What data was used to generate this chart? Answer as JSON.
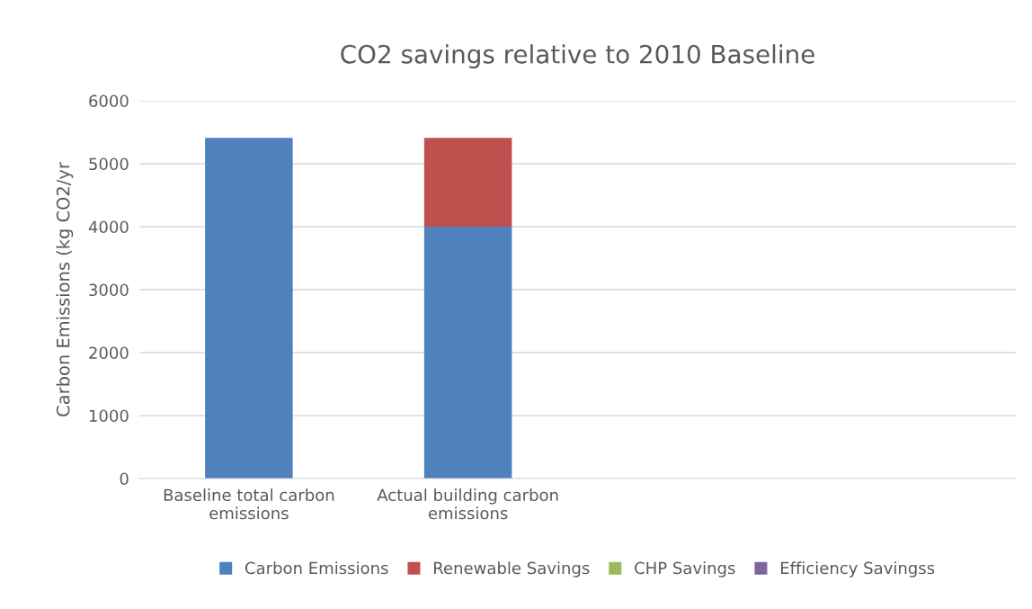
{
  "chart_data": {
    "type": "bar",
    "title": "CO2 savings relative to 2010 Baseline",
    "ylabel": "Carbon Emissions (kg CO2/yr",
    "categories": [
      "Baseline total carbon emissions",
      "Actual building carbon emissions",
      null,
      null
    ],
    "stacked": true,
    "series": [
      {
        "name": "Carbon Emissions",
        "color": "#4f81bd",
        "values": [
          5410,
          4000,
          null,
          null
        ]
      },
      {
        "name": "Renewable Savings",
        "color": "#c0504d",
        "values": [
          0,
          1410,
          null,
          null
        ]
      },
      {
        "name": "CHP Savings",
        "color": "#9bbb59",
        "values": [
          null,
          null,
          null,
          null
        ]
      },
      {
        "name": "Efficiency Savingss",
        "color": "#8064a2",
        "values": [
          null,
          null,
          null,
          null
        ]
      }
    ],
    "ylim": [
      0,
      6000
    ],
    "yticks": [
      0,
      1000,
      2000,
      3000,
      4000,
      5000,
      6000
    ],
    "grid": "y",
    "legend": "bottom"
  }
}
